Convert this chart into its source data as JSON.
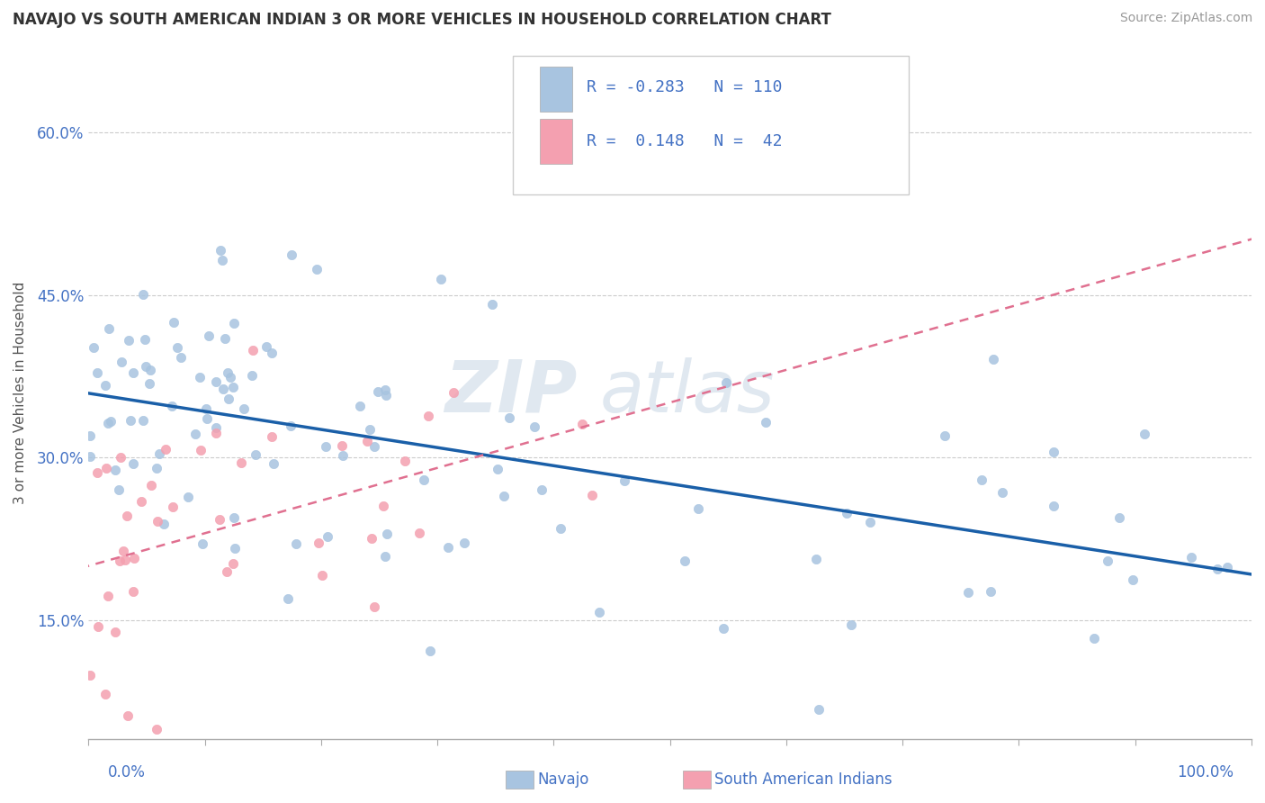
{
  "title": "NAVAJO VS SOUTH AMERICAN INDIAN 3 OR MORE VEHICLES IN HOUSEHOLD CORRELATION CHART",
  "source": "Source: ZipAtlas.com",
  "ylabel": "3 or more Vehicles in Household",
  "yticks": [
    0.15,
    0.3,
    0.45,
    0.6
  ],
  "ytick_labels": [
    "15.0%",
    "30.0%",
    "45.0%",
    "60.0%"
  ],
  "xlim": [
    0.0,
    1.0
  ],
  "ylim": [
    0.04,
    0.68
  ],
  "navajo_R": "-0.283",
  "navajo_N": "110",
  "south_american_R": "0.148",
  "south_american_N": "42",
  "navajo_color": "#a8c4e0",
  "south_american_color": "#f4a0b0",
  "navajo_line_color": "#1a5fa8",
  "south_american_line_color": "#e07090",
  "text_color": "#4472c4",
  "background_color": "#ffffff",
  "grid_color": "#cccccc",
  "navajo_seed": 77,
  "south_american_seed": 55
}
